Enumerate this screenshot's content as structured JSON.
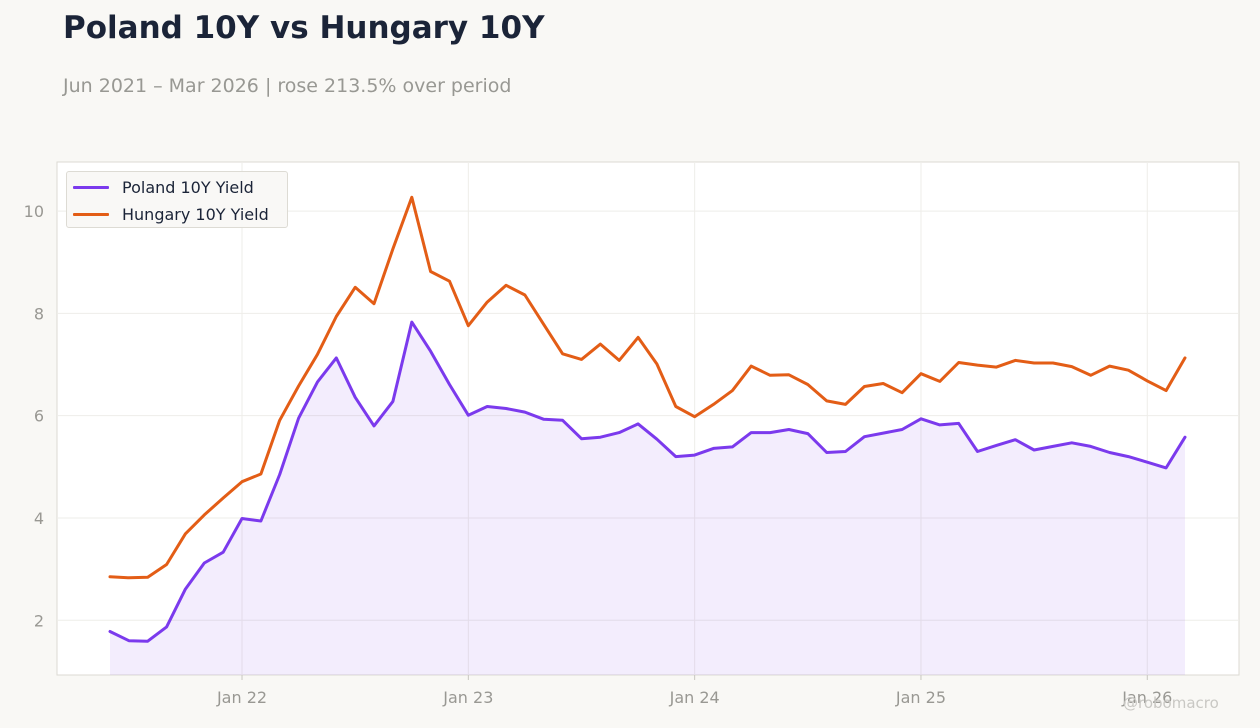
{
  "title": "Poland 10Y vs Hungary 10Y",
  "subtitle": "Jun 2021 – Mar 2026 | rose 213.5% over period",
  "watermark": "@robomacro",
  "colors": {
    "poland": "#7b3aed",
    "hungary": "#e35d16",
    "poland_fill": "#ede3fd",
    "background": "#f9f8f5",
    "plot_background": "#ffffff",
    "grid": "#eeede9",
    "axis_text": "#999893",
    "title": "#1b2438"
  },
  "chart_data": {
    "type": "line",
    "title": "Poland 10Y vs Hungary 10Y",
    "xlabel": "",
    "ylabel": "",
    "x": [
      "2021-06",
      "2021-07",
      "2021-08",
      "2021-09",
      "2021-10",
      "2021-11",
      "2021-12",
      "2022-01",
      "2022-02",
      "2022-03",
      "2022-04",
      "2022-05",
      "2022-06",
      "2022-07",
      "2022-08",
      "2022-09",
      "2022-10",
      "2022-11",
      "2022-12",
      "2023-01",
      "2023-02",
      "2023-03",
      "2023-04",
      "2023-05",
      "2023-06",
      "2023-07",
      "2023-08",
      "2023-09",
      "2023-10",
      "2023-11",
      "2023-12",
      "2024-01",
      "2024-02",
      "2024-03",
      "2024-04",
      "2024-05",
      "2024-06",
      "2024-07",
      "2024-08",
      "2024-09",
      "2024-10",
      "2024-11",
      "2024-12",
      "2025-01",
      "2025-02",
      "2025-03",
      "2025-04",
      "2025-05",
      "2025-06",
      "2025-07",
      "2025-08",
      "2025-09",
      "2025-10",
      "2025-11",
      "2025-12",
      "2026-01",
      "2026-02",
      "2026-03"
    ],
    "series": [
      {
        "name": "Poland 10Y Yield",
        "color": "#7b3aed",
        "fill": true,
        "values": [
          1.78,
          1.6,
          1.59,
          1.87,
          2.61,
          3.12,
          3.33,
          3.99,
          3.94,
          4.85,
          5.95,
          6.66,
          7.13,
          6.36,
          5.8,
          6.28,
          7.83,
          7.26,
          6.61,
          6.01,
          6.18,
          6.14,
          6.07,
          5.93,
          5.91,
          5.55,
          5.58,
          5.67,
          5.84,
          5.54,
          5.2,
          5.23,
          5.36,
          5.39,
          5.67,
          5.67,
          5.73,
          5.65,
          5.28,
          5.3,
          5.59,
          5.66,
          5.73,
          5.94,
          5.82,
          5.85,
          5.3,
          5.42,
          5.53,
          5.33,
          5.4,
          5.47,
          5.4,
          5.28,
          5.2,
          5.09,
          4.98,
          5.58
        ]
      },
      {
        "name": "Hungary 10Y Yield",
        "color": "#e35d16",
        "fill": false,
        "values": [
          2.85,
          2.83,
          2.84,
          3.09,
          3.69,
          4.06,
          4.39,
          4.71,
          4.86,
          5.91,
          6.58,
          7.2,
          7.94,
          8.51,
          8.19,
          9.26,
          10.27,
          8.82,
          8.63,
          7.76,
          8.22,
          8.55,
          8.36,
          7.78,
          7.21,
          7.1,
          7.4,
          7.08,
          7.53,
          7.01,
          6.18,
          5.98,
          6.22,
          6.49,
          6.97,
          6.79,
          6.8,
          6.61,
          6.29,
          6.22,
          6.57,
          6.63,
          6.45,
          6.82,
          6.67,
          7.04,
          6.99,
          6.95,
          7.08,
          7.03,
          7.03,
          6.96,
          6.79,
          6.97,
          6.89,
          6.68,
          6.49,
          7.13
        ]
      }
    ],
    "ylim": [
      0.93,
      10.96
    ],
    "yticks": [
      "2",
      "4",
      "6",
      "8",
      "10"
    ],
    "ytick_values": [
      2,
      4,
      6,
      8,
      10
    ],
    "xticks": [
      "Jan 22",
      "Jan 23",
      "Jan 24",
      "Jan 25",
      "Jan 26"
    ],
    "xtick_dates": [
      "2022-01",
      "2023-01",
      "2024-01",
      "2025-01",
      "2026-01"
    ],
    "grid": true,
    "legend_position": "top-left"
  }
}
